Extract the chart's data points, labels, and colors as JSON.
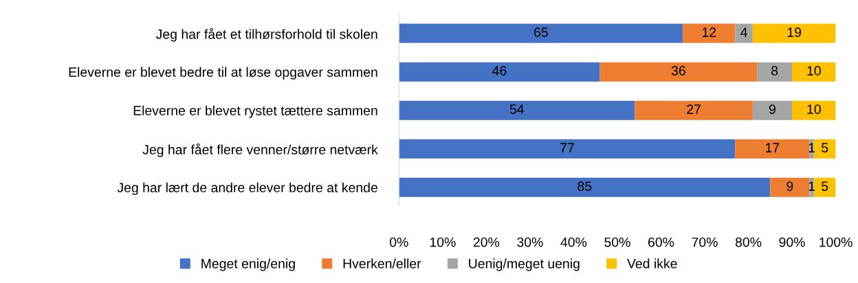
{
  "chart_data": {
    "type": "bar",
    "orientation": "horizontal",
    "stacked": true,
    "data_labels": true,
    "legend": "bottom",
    "grid": false,
    "categories": [
      "Jeg har fået et tilhørsforhold til skolen",
      "Eleverne er blevet bedre til at løse opgaver sammen",
      "Eleverne er blevet rystet tættere sammen",
      "Jeg har fået flere venner/større netværk",
      "Jeg har lært de andre elever bedre at kende"
    ],
    "series": [
      {
        "name": "Meget enig/enig",
        "color": "#4472c4",
        "values": [
          65,
          46,
          54,
          77,
          85
        ]
      },
      {
        "name": "Hverken/eller",
        "color": "#ed7d31",
        "values": [
          12,
          36,
          27,
          17,
          9
        ]
      },
      {
        "name": "Uenig/meget uenig",
        "color": "#a5a5a5",
        "values": [
          4,
          8,
          9,
          1,
          1
        ]
      },
      {
        "name": "Ved ikke",
        "color": "#ffc000",
        "values": [
          19,
          10,
          10,
          5,
          5
        ]
      }
    ],
    "xlim": [
      0,
      100
    ],
    "xticks": [
      {
        "value": 0,
        "label": "0%"
      },
      {
        "value": 10,
        "label": "10%"
      },
      {
        "value": 20,
        "label": "20%"
      },
      {
        "value": 30,
        "label": "30%"
      },
      {
        "value": 40,
        "label": "40%"
      },
      {
        "value": 50,
        "label": "50%"
      },
      {
        "value": 60,
        "label": "60%"
      },
      {
        "value": 70,
        "label": "70%"
      },
      {
        "value": 80,
        "label": "80%"
      },
      {
        "value": 90,
        "label": "90%"
      },
      {
        "value": 100,
        "label": "100%"
      }
    ]
  }
}
